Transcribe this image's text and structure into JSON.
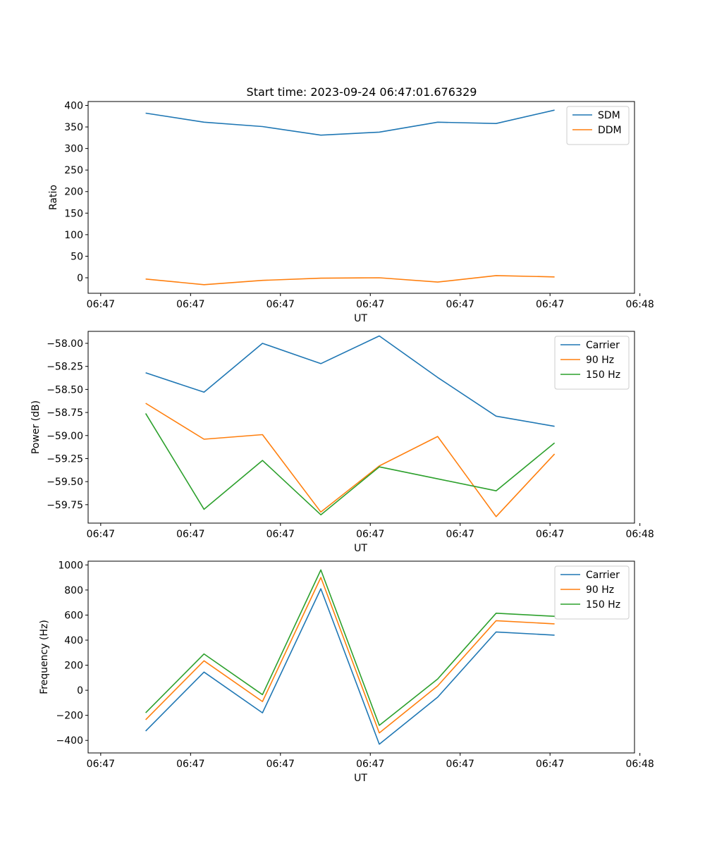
{
  "figure_title": "Start time: 2023-09-24 06:47:01.676329",
  "colors": {
    "blue": "#1f77b4",
    "orange": "#ff7f0e",
    "green": "#2ca02c"
  },
  "chart_data": [
    {
      "type": "line",
      "title": "Start time: 2023-09-24 06:47:01.676329",
      "xlabel": "UT",
      "ylabel": "Ratio",
      "x": [
        0.5,
        1.15,
        1.8,
        2.45,
        3.1,
        3.75,
        4.4,
        5.05
      ],
      "xlim": [
        -0.14,
        5.94
      ],
      "x_ticks": [
        0,
        1,
        2,
        3,
        4,
        5,
        6
      ],
      "x_tick_labels": [
        "06:47",
        "06:47",
        "06:47",
        "06:47",
        "06:47",
        "06:47",
        "06:48"
      ],
      "ylim": [
        -36,
        409
      ],
      "y_ticks": [
        0,
        50,
        100,
        150,
        200,
        250,
        300,
        350,
        400
      ],
      "y_tick_labels": [
        "0",
        "50",
        "100",
        "150",
        "200",
        "250",
        "300",
        "350",
        "400"
      ],
      "legend_position": "top-right",
      "series": [
        {
          "name": "SDM",
          "color": "#1f77b4",
          "values": [
            382,
            361,
            351,
            331,
            338,
            361,
            358,
            389
          ]
        },
        {
          "name": "DDM",
          "color": "#ff7f0e",
          "values": [
            -3,
            -16,
            -6,
            -1,
            0,
            -10,
            5,
            2
          ]
        }
      ]
    },
    {
      "type": "line",
      "xlabel": "UT",
      "ylabel": "Power (dB)",
      "x": [
        0.5,
        1.15,
        1.8,
        2.45,
        3.1,
        3.75,
        4.4,
        5.05
      ],
      "xlim": [
        -0.14,
        5.94
      ],
      "x_ticks": [
        0,
        1,
        2,
        3,
        4,
        5,
        6
      ],
      "x_tick_labels": [
        "06:47",
        "06:47",
        "06:47",
        "06:47",
        "06:47",
        "06:47",
        "06:48"
      ],
      "ylim": [
        -59.95,
        -57.87
      ],
      "y_ticks": [
        -59.75,
        -59.5,
        -59.25,
        -59.0,
        -58.75,
        -58.5,
        -58.25,
        -58.0
      ],
      "y_tick_labels": [
        "−59.75",
        "−59.50",
        "−59.25",
        "−59.00",
        "−58.75",
        "−58.50",
        "−58.25",
        "−58.00"
      ],
      "legend_position": "top-right",
      "series": [
        {
          "name": "Carrier",
          "color": "#1f77b4",
          "values": [
            -58.32,
            -58.53,
            -58.0,
            -58.22,
            -57.92,
            -58.37,
            -58.79,
            -58.9
          ]
        },
        {
          "name": "90 Hz",
          "color": "#ff7f0e",
          "values": [
            -58.65,
            -59.04,
            -58.99,
            -59.83,
            -59.33,
            -59.01,
            -59.88,
            -59.2
          ]
        },
        {
          "name": "150 Hz",
          "color": "#2ca02c",
          "values": [
            -58.76,
            -59.8,
            -59.27,
            -59.86,
            -59.34,
            -59.47,
            -59.6,
            -59.08
          ]
        }
      ]
    },
    {
      "type": "line",
      "xlabel": "UT",
      "ylabel": "Frequency (Hz)",
      "x": [
        0.5,
        1.15,
        1.8,
        2.45,
        3.1,
        3.75,
        4.4,
        5.05
      ],
      "xlim": [
        -0.14,
        5.94
      ],
      "x_ticks": [
        0,
        1,
        2,
        3,
        4,
        5,
        6
      ],
      "x_tick_labels": [
        "06:47",
        "06:47",
        "06:47",
        "06:47",
        "06:47",
        "06:47",
        "06:48"
      ],
      "ylim": [
        -500,
        1030
      ],
      "y_ticks": [
        -400,
        -200,
        0,
        200,
        400,
        600,
        800,
        1000
      ],
      "y_tick_labels": [
        "−400",
        "−200",
        "0",
        "200",
        "400",
        "600",
        "800",
        "1000"
      ],
      "legend_position": "top-right",
      "series": [
        {
          "name": "Carrier",
          "color": "#1f77b4",
          "values": [
            -325,
            145,
            -180,
            810,
            -430,
            -55,
            465,
            440
          ]
        },
        {
          "name": "90 Hz",
          "color": "#ff7f0e",
          "values": [
            -235,
            235,
            -90,
            900,
            -340,
            35,
            555,
            530
          ]
        },
        {
          "name": "150 Hz",
          "color": "#2ca02c",
          "values": [
            -180,
            290,
            -35,
            960,
            -280,
            90,
            615,
            590
          ]
        }
      ]
    }
  ]
}
